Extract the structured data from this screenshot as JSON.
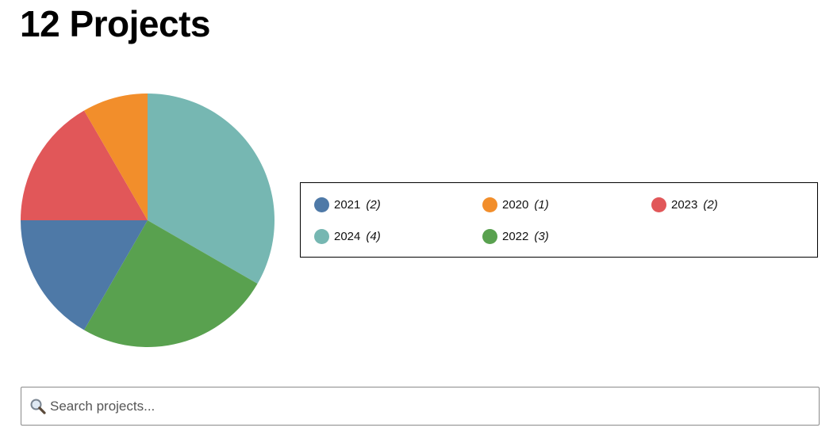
{
  "page": {
    "title": "12 Projects"
  },
  "search": {
    "placeholder": "Search projects...",
    "value": ""
  },
  "chart_data": {
    "type": "pie",
    "title": "",
    "start_angle_deg": 0,
    "direction": "clockwise",
    "legend_position": "right",
    "slices": [
      {
        "label": "2024",
        "value": 4,
        "color": "#76b7b2"
      },
      {
        "label": "2022",
        "value": 3,
        "color": "#59a14f"
      },
      {
        "label": "2021",
        "value": 2,
        "color": "#4e79a7"
      },
      {
        "label": "2023",
        "value": 2,
        "color": "#e15759"
      },
      {
        "label": "2020",
        "value": 1,
        "color": "#f28e2b"
      }
    ],
    "legend": [
      {
        "label": "2021",
        "count": "(2)",
        "color": "#4e79a7"
      },
      {
        "label": "2020",
        "count": "(1)",
        "color": "#f28e2b"
      },
      {
        "label": "2023",
        "count": "(2)",
        "color": "#e15759"
      },
      {
        "label": "2024",
        "count": "(4)",
        "color": "#76b7b2"
      },
      {
        "label": "2022",
        "count": "(3)",
        "color": "#59a14f"
      }
    ]
  }
}
